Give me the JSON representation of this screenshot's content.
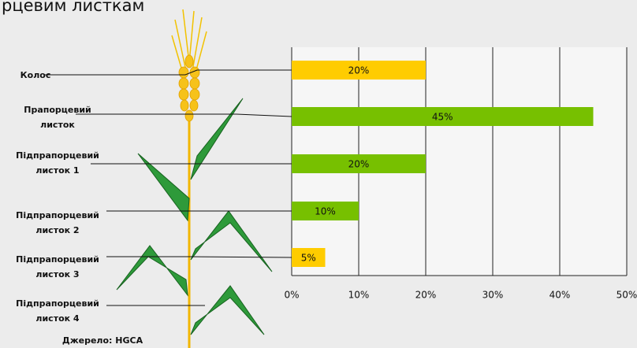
{
  "chart_data": {
    "type": "bar",
    "orientation": "horizontal",
    "title": "рцевим листкам",
    "categories": [
      "Колос",
      "Прапорцевий листок",
      "Підпрапорцевий листок 1",
      "Підпрапорцевий листок 2",
      "Підпрапорцевий листок 3",
      "Підпрапорцевий листок 4"
    ],
    "values": [
      20,
      45,
      20,
      10,
      5,
      null
    ],
    "value_labels": [
      "20%",
      "45%",
      "20%",
      "10%",
      "5%",
      null
    ],
    "colors": [
      "#ffcc00",
      "#77c000",
      "#77c000",
      "#77c000",
      "#ffcc00",
      null
    ],
    "xlim": [
      0,
      50
    ],
    "xticks": [
      {
        "value": 0,
        "label": "0%"
      },
      {
        "value": 10,
        "label": "10%"
      },
      {
        "value": 20,
        "label": "20%"
      },
      {
        "value": 30,
        "label": "30%"
      },
      {
        "value": 40,
        "label": "40%"
      },
      {
        "value": 50,
        "label": "50%"
      }
    ],
    "grid": true,
    "source": "Джерело: HGCA"
  }
}
